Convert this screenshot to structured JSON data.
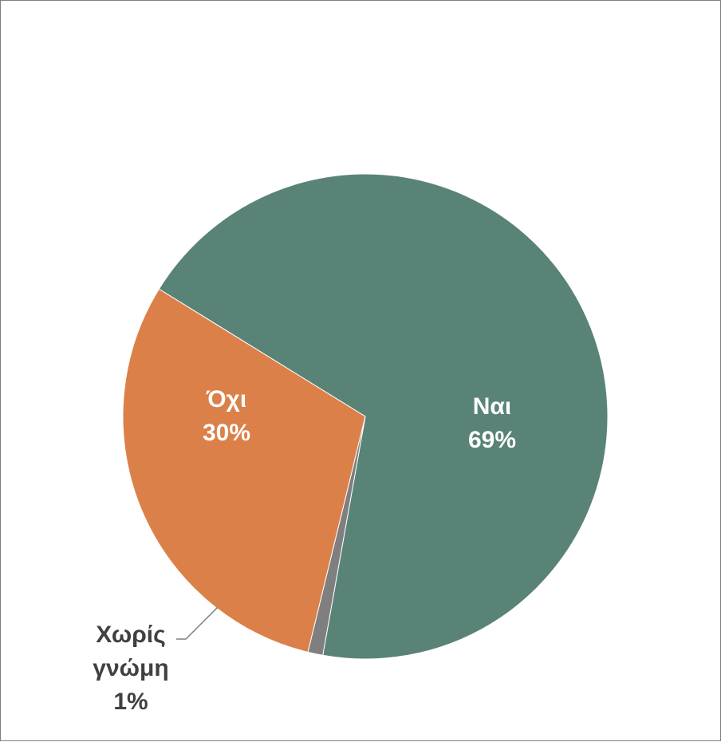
{
  "chart_data": {
    "type": "pie",
    "title": "",
    "slices": [
      {
        "label": "Ναι",
        "value": 69,
        "display": "69%",
        "color": "#5a8378",
        "label_color": "#ffffff",
        "label_position": "inside"
      },
      {
        "label": "Χωρίς γνώμη",
        "value": 1,
        "display": "1%",
        "color": "#7f7f7f",
        "label_color": "#404040",
        "label_position": "outside"
      },
      {
        "label": "Όχι",
        "value": 30,
        "display": "30%",
        "color": "#dc8049",
        "label_color": "#ffffff",
        "label_position": "inside"
      }
    ]
  }
}
